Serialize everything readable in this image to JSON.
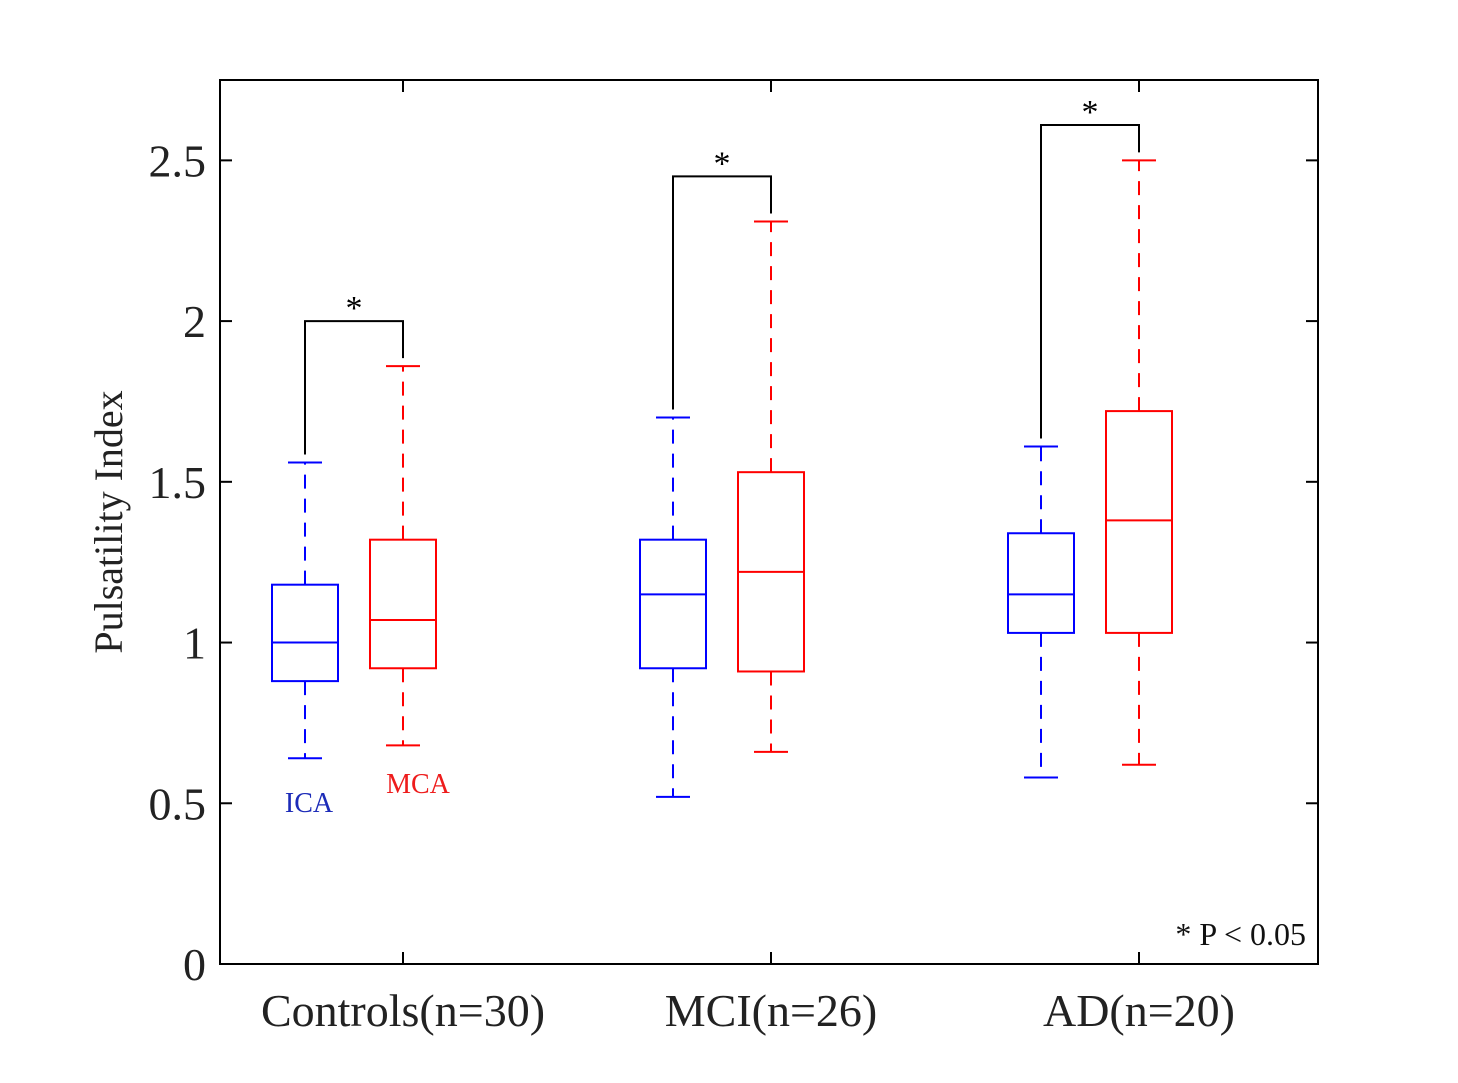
{
  "chart_data": {
    "type": "box",
    "ylabel": "Pulsatility Index",
    "ylim": [
      0,
      2.75
    ],
    "yticks": [
      0,
      0.5,
      1,
      1.5,
      2,
      2.5
    ],
    "ytick_labels": [
      "0",
      "0.5",
      "1",
      "1.5",
      "2",
      "2.5"
    ],
    "categories": [
      "Controls(n=30)",
      "MCI(n=26)",
      "AD(n=20)"
    ],
    "series": [
      {
        "name": "ICA",
        "color": "#0000ff",
        "boxes": [
          {
            "whisker_low": 0.64,
            "q1": 0.88,
            "median": 1.0,
            "q3": 1.18,
            "whisker_high": 1.56
          },
          {
            "whisker_low": 0.52,
            "q1": 0.92,
            "median": 1.15,
            "q3": 1.32,
            "whisker_high": 1.7
          },
          {
            "whisker_low": 0.58,
            "q1": 1.03,
            "median": 1.15,
            "q3": 1.34,
            "whisker_high": 1.61
          }
        ]
      },
      {
        "name": "MCA",
        "color": "#ff0000",
        "boxes": [
          {
            "whisker_low": 0.68,
            "q1": 0.92,
            "median": 1.07,
            "q3": 1.32,
            "whisker_high": 1.86
          },
          {
            "whisker_low": 0.66,
            "q1": 0.91,
            "median": 1.22,
            "q3": 1.53,
            "whisker_high": 2.31
          },
          {
            "whisker_low": 0.62,
            "q1": 1.03,
            "median": 1.38,
            "q3": 1.72,
            "whisker_high": 2.5
          }
        ]
      }
    ],
    "significance": [
      {
        "group": 0,
        "level": 2.0,
        "label": "*"
      },
      {
        "group": 1,
        "level": 2.45,
        "label": "*"
      },
      {
        "group": 2,
        "level": 2.61,
        "label": "*"
      }
    ],
    "annotations": {
      "series_label_ica": "ICA",
      "series_label_mca": "MCA",
      "p_value_note": "* P < 0.05"
    }
  }
}
